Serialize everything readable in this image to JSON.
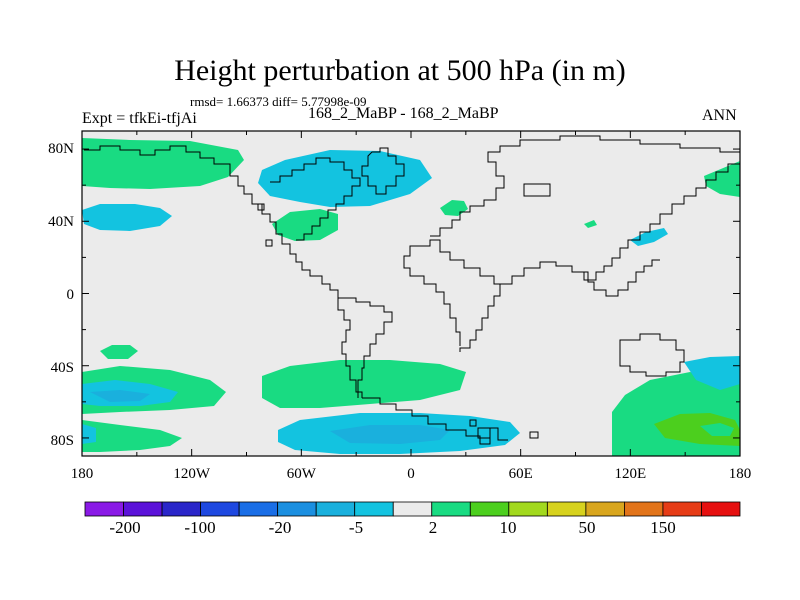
{
  "title": "Height perturbation at 500 hPa (in m)",
  "stats_line": "rmsd= 1.66373 diff= 5.77998e-09",
  "left_label": "Expt = tfkEi-tfjAi",
  "center_label": "168_2_MaBP - 168_2_MaBP",
  "right_label": "ANN",
  "axes": {
    "lon_ticks": [
      "180",
      "120W",
      "60W",
      "0",
      "60E",
      "120E",
      "180"
    ],
    "lat_ticks": [
      "80N",
      "40N",
      "0",
      "40S",
      "80S"
    ],
    "lon_range": [
      -180,
      180
    ],
    "lat_range": [
      -90,
      90
    ]
  },
  "colorbar": {
    "colors": [
      "#8a1ae6",
      "#5b12d9",
      "#2a26c9",
      "#1e48e0",
      "#1a6ee6",
      "#1b8fe0",
      "#1ab0dd",
      "#13c3e0",
      "#ebebeb",
      "#19db82",
      "#4ccf1e",
      "#a2d91e",
      "#d7d21e",
      "#d9a61e",
      "#e2741a",
      "#e63c16",
      "#e61010"
    ],
    "labels": [
      "-200",
      "-100",
      "-20",
      "-5",
      "2",
      "10",
      "50",
      "150"
    ]
  },
  "colors": {
    "land_background": "#ebebeb",
    "green": "#19db82",
    "cyan": "#13c3e0",
    "blue": "#1ab0dd",
    "bright_green": "#4ccf1e"
  }
}
